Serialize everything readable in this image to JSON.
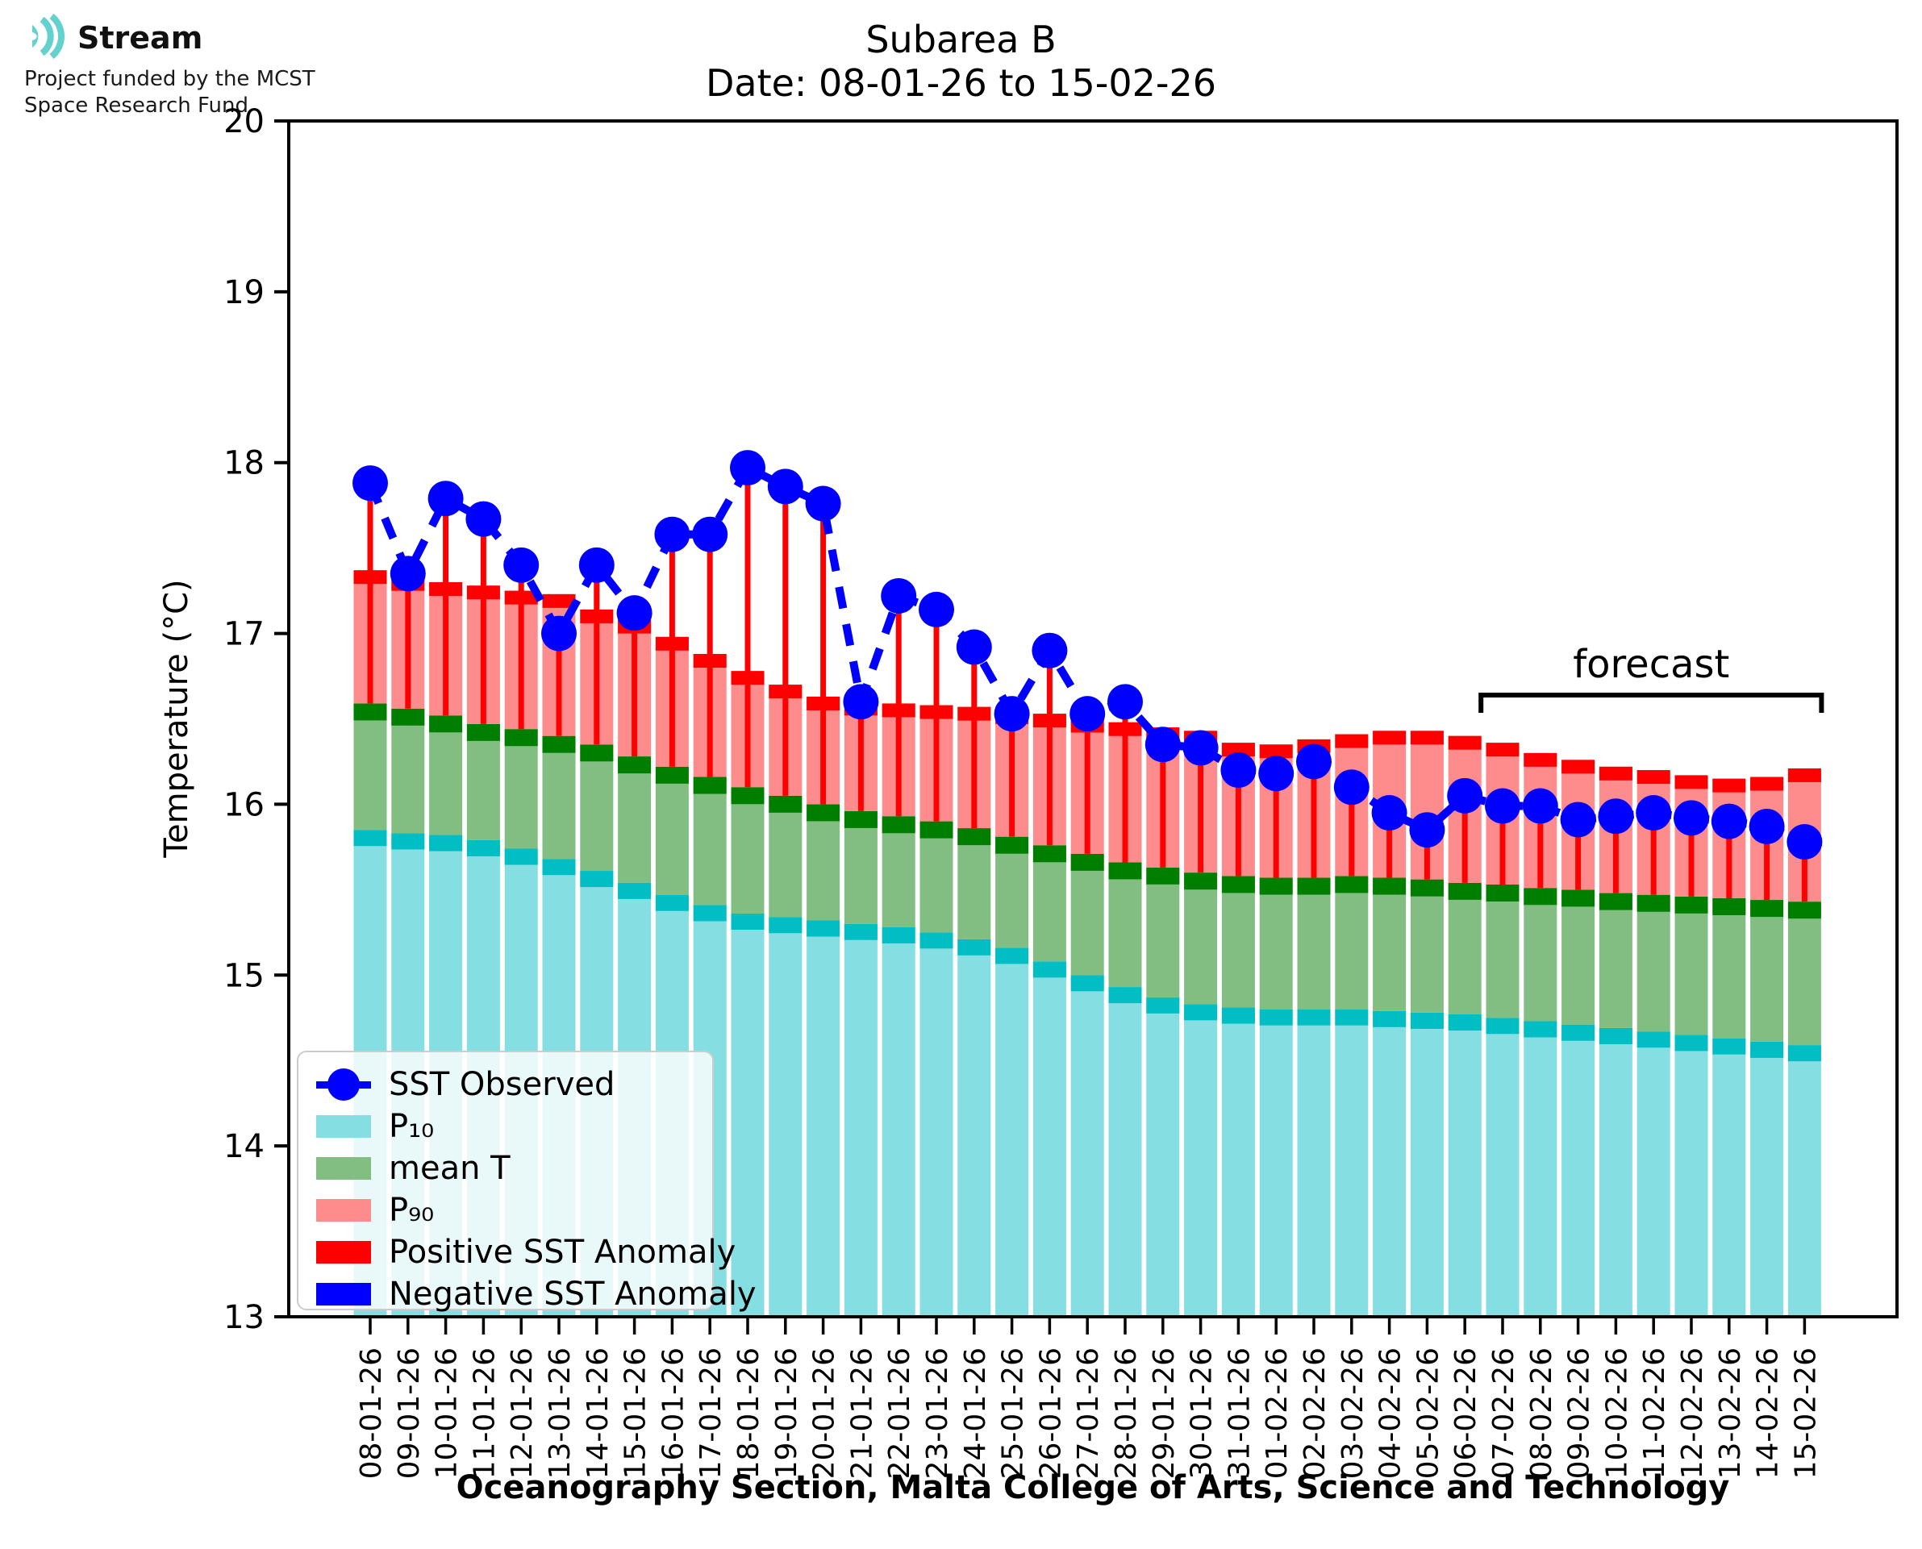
{
  "logo": {
    "brand": "Stream",
    "line1": "Project funded by the MCST",
    "line2": "Space Research Fund",
    "icon": "sound-wave-arcs",
    "icon_color": "#63D1CE"
  },
  "title": {
    "line1": "Subarea B",
    "line2": "Date: 08-01-26 to 15-02-26"
  },
  "axes": {
    "ylabel": "Temperature (°C)",
    "xlabel": "Oceanography Section, Malta College of Arts, Science and Technology",
    "yticks": [
      "20",
      "19",
      "18",
      "17",
      "16",
      "15",
      "14",
      "13"
    ],
    "ylim": [
      13,
      20
    ]
  },
  "annotations": {
    "forecast_label": "forecast",
    "forecast_span": [
      "06-02-26",
      "15-02-26"
    ]
  },
  "legend": {
    "items": [
      {
        "label": "SST Observed",
        "type": "line-dot",
        "color": "#0000FF"
      },
      {
        "label": "P₁₀",
        "type": "patch",
        "color": "#84DEE2"
      },
      {
        "label": "mean T",
        "type": "patch",
        "color": "#82BE82"
      },
      {
        "label": "P₉₀",
        "type": "patch",
        "color": "#FF8C8C"
      },
      {
        "label": "Positive SST Anomaly",
        "type": "patch",
        "color": "#FF0000"
      },
      {
        "label": "Negative SST Anomaly",
        "type": "patch",
        "color": "#0000FF"
      }
    ]
  },
  "chart_data": {
    "type": "bar",
    "title": "Subarea B — Date: 08-01-26 to 15-02-26",
    "xlabel": "Oceanography Section, Malta College of Arts, Science and Technology",
    "ylabel": "Temperature (°C)",
    "ylim": [
      13,
      20
    ],
    "grid": false,
    "legend_position": "lower-left",
    "categories": [
      "08-01-26",
      "09-01-26",
      "10-01-26",
      "11-01-26",
      "12-01-26",
      "13-01-26",
      "14-01-26",
      "15-01-26",
      "16-01-26",
      "17-01-26",
      "18-01-26",
      "19-01-26",
      "20-01-26",
      "21-01-26",
      "22-01-26",
      "23-01-26",
      "24-01-26",
      "25-01-26",
      "26-01-26",
      "27-01-26",
      "28-01-26",
      "29-01-26",
      "30-01-26",
      "31-01-26",
      "01-02-26",
      "02-02-26",
      "03-02-26",
      "04-02-26",
      "05-02-26",
      "06-02-26",
      "07-02-26",
      "08-02-26",
      "09-02-26",
      "10-02-26",
      "11-02-26",
      "12-02-26",
      "13-02-26",
      "14-02-26",
      "15-02-26"
    ],
    "series": [
      {
        "name": "P₁₀",
        "role": "p10",
        "values": [
          15.85,
          15.83,
          15.82,
          15.79,
          15.74,
          15.68,
          15.61,
          15.54,
          15.47,
          15.41,
          15.36,
          15.34,
          15.32,
          15.3,
          15.28,
          15.25,
          15.21,
          15.16,
          15.08,
          15.0,
          14.93,
          14.87,
          14.83,
          14.81,
          14.8,
          14.8,
          14.8,
          14.79,
          14.78,
          14.77,
          14.75,
          14.73,
          14.71,
          14.69,
          14.67,
          14.65,
          14.63,
          14.61,
          14.59
        ]
      },
      {
        "name": "mean T",
        "role": "mean",
        "values": [
          16.59,
          16.56,
          16.52,
          16.47,
          16.44,
          16.4,
          16.35,
          16.28,
          16.22,
          16.16,
          16.1,
          16.05,
          16.0,
          15.96,
          15.93,
          15.9,
          15.86,
          15.81,
          15.76,
          15.71,
          15.66,
          15.63,
          15.6,
          15.58,
          15.57,
          15.57,
          15.58,
          15.57,
          15.56,
          15.54,
          15.53,
          15.51,
          15.5,
          15.48,
          15.47,
          15.46,
          15.45,
          15.44,
          15.43
        ]
      },
      {
        "name": "P₉₀",
        "role": "p90",
        "values": [
          17.37,
          17.33,
          17.3,
          17.28,
          17.25,
          17.23,
          17.14,
          17.08,
          16.98,
          16.88,
          16.78,
          16.7,
          16.63,
          16.6,
          16.59,
          16.58,
          16.57,
          16.55,
          16.53,
          16.5,
          16.48,
          16.45,
          16.43,
          16.36,
          16.35,
          16.38,
          16.41,
          16.43,
          16.43,
          16.4,
          16.36,
          16.3,
          16.26,
          16.22,
          16.2,
          16.17,
          16.15,
          16.16,
          16.21
        ]
      },
      {
        "name": "SST Observed",
        "role": "sst",
        "values": [
          17.88,
          17.35,
          17.79,
          17.67,
          17.4,
          17.0,
          17.4,
          17.12,
          17.58,
          17.58,
          17.97,
          17.86,
          17.76,
          16.6,
          17.22,
          17.14,
          16.92,
          16.53,
          16.9,
          16.53,
          16.6,
          16.35,
          16.33,
          16.2,
          16.18,
          16.25,
          16.1,
          15.95,
          15.85,
          16.05,
          15.99,
          15.99,
          15.91,
          15.93,
          15.95,
          15.92,
          15.9,
          15.87,
          15.78
        ]
      }
    ],
    "colors": {
      "p10_fill": "#84DEE2",
      "p10_edge": "#00BEC4",
      "mean_fill": "#82BE82",
      "mean_edge": "#007E00",
      "p90_fill": "#FF8C8C",
      "p90_edge": "#FF0000",
      "positive_anomaly": "#FF0000",
      "negative_anomaly": "#0000FF",
      "sst_line": "#0000FF"
    }
  }
}
